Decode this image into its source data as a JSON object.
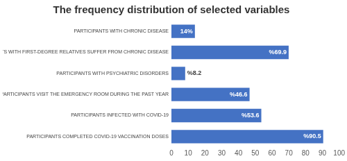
{
  "chart_data": {
    "type": "bar",
    "orientation": "horizontal",
    "title": "The frequency distribution of selected variables",
    "categories": [
      "PARTICIPANTS WITH CHRONIC DISEASE",
      "PARTICIPANTS WITH FIRST-DEGREE RELATIVES SUFFER FROM CHRONIC DISEASE",
      "PARTICIPANTS WITH PSYCHIATRIC DISORDERS",
      "PARTICIPANTS VISIT THE EMERGENCY ROOM DURING THE PAST YEAR",
      "PARTICIPANTS INFECTED WITH COVID-19",
      "PARTICIPANTS COMPLETED COVID-19 VACCINATION DOSES"
    ],
    "values": [
      14,
      69.9,
      8.2,
      46.6,
      53.6,
      90.5
    ],
    "value_labels": [
      "14%",
      "%69.9",
      "%8.2",
      "%46.6",
      "%53.6",
      "%90.5"
    ],
    "color": "#4472c4",
    "xlim": [
      0,
      100
    ],
    "xticks": [
      0,
      10,
      20,
      30,
      40,
      50,
      60,
      70,
      80,
      90,
      100
    ],
    "grid": false,
    "data_labels": true
  }
}
